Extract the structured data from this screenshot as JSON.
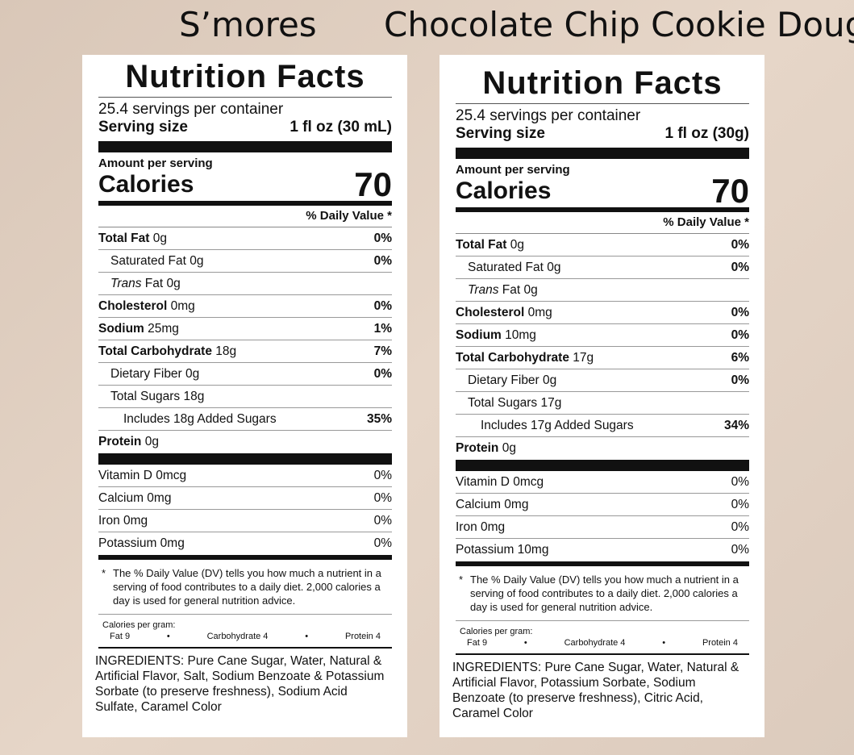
{
  "titles": [
    "S’mores",
    "Chocolate Chip Cookie Dough"
  ],
  "labels": [
    {
      "heading": "Nutrition Facts",
      "servings_per_container": "25.4 servings per container",
      "serving_size_label": "Serving size",
      "serving_size_value": "1 fl oz (30 mL)",
      "amount_per_serving": "Amount per serving",
      "calories_label": "Calories",
      "calories_value": "70",
      "dv_header": "% Daily Value *",
      "total_fat": {
        "name": "Total Fat",
        "amount": "0g",
        "dv": "0%"
      },
      "saturated_fat": {
        "name": "Saturated Fat 0g",
        "dv": "0%"
      },
      "trans_fat": {
        "name_italic": "Trans",
        "name_rest": "Fat 0g"
      },
      "cholesterol": {
        "name": "Cholesterol",
        "amount": "0mg",
        "dv": "0%"
      },
      "sodium": {
        "name": "Sodium",
        "amount": "25mg",
        "dv": "1%"
      },
      "total_carb": {
        "name": "Total Carbohydrate",
        "amount": "18g",
        "dv": "7%"
      },
      "fiber": {
        "name": "Dietary Fiber 0g",
        "dv": "0%"
      },
      "total_sugars": {
        "name": "Total Sugars 18g"
      },
      "added_sugars": {
        "name": "Includes 18g Added Sugars",
        "dv": "35%"
      },
      "protein": {
        "name": "Protein",
        "amount": "0g"
      },
      "vitamin_d": {
        "name": "Vitamin D 0mcg",
        "dv": "0%"
      },
      "calcium": {
        "name": "Calcium 0mg",
        "dv": "0%"
      },
      "iron": {
        "name": "Iron 0mg",
        "dv": "0%"
      },
      "potassium": {
        "name": "Potassium 0mg",
        "dv": "0%"
      },
      "footnote_star": "*",
      "footnote": "The % Daily Value (DV) tells you how much a nutrient in a serving of food contributes to a daily diet. 2,000 calories a day is used for general nutrition advice.",
      "cal_per_gram_label": "Calories per gram:",
      "cpg_fat": "Fat 9",
      "cpg_dot": "•",
      "cpg_carb": "Carbohydrate 4",
      "cpg_protein": "Protein 4",
      "ingredients": "INGREDIENTS: Pure Cane Sugar, Water, Natural & Artificial Flavor, Salt, Sodium Benzoate & Potassium Sorbate (to preserve freshness), Sodium Acid Sulfate, Caramel Color"
    },
    {
      "heading": "Nutrition Facts",
      "servings_per_container": "25.4 servings per container",
      "serving_size_label": "Serving size",
      "serving_size_value": "1 fl oz (30g)",
      "amount_per_serving": "Amount per serving",
      "calories_label": "Calories",
      "calories_value": "70",
      "dv_header": "% Daily Value *",
      "total_fat": {
        "name": "Total Fat",
        "amount": "0g",
        "dv": "0%"
      },
      "saturated_fat": {
        "name": "Saturated Fat 0g",
        "dv": "0%"
      },
      "trans_fat": {
        "name_italic": "Trans",
        "name_rest": "Fat 0g"
      },
      "cholesterol": {
        "name": "Cholesterol",
        "amount": "0mg",
        "dv": "0%"
      },
      "sodium": {
        "name": "Sodium",
        "amount": "10mg",
        "dv": "0%"
      },
      "total_carb": {
        "name": "Total Carbohydrate",
        "amount": "17g",
        "dv": "6%"
      },
      "fiber": {
        "name": "Dietary Fiber 0g",
        "dv": "0%"
      },
      "total_sugars": {
        "name": "Total Sugars 17g"
      },
      "added_sugars": {
        "name": "Includes 17g Added Sugars",
        "dv": "34%"
      },
      "protein": {
        "name": "Protein",
        "amount": "0g"
      },
      "vitamin_d": {
        "name": "Vitamin D 0mcg",
        "dv": "0%"
      },
      "calcium": {
        "name": "Calcium 0mg",
        "dv": "0%"
      },
      "iron": {
        "name": "Iron 0mg",
        "dv": "0%"
      },
      "potassium": {
        "name": "Potassium 10mg",
        "dv": "0%"
      },
      "footnote_star": "*",
      "footnote": "The % Daily Value (DV) tells you how much a nutrient in a serving of food contributes to a daily diet. 2,000 calories a day is used for general nutrition advice.",
      "cal_per_gram_label": "Calories per gram:",
      "cpg_fat": "Fat 9",
      "cpg_dot": "•",
      "cpg_carb": "Carbohydrate 4",
      "cpg_protein": "Protein 4",
      "ingredients": "INGREDIENTS: Pure Cane Sugar, Water, Natural & Artificial Flavor, Potassium Sorbate, Sodium Benzoate (to preserve freshness), Citric Acid, Caramel Color"
    }
  ]
}
